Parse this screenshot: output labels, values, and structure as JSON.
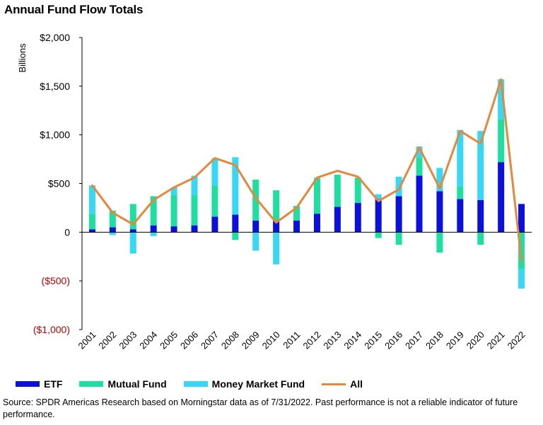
{
  "title": "Annual Fund Flow Totals",
  "source": "Source: SPDR Americas Research based on Morningstar data as of 7/31/2022.  Past performance is not a reliable indicator of future performance.",
  "colors": {
    "etf": "#0a10e0",
    "mutual_fund": "#1de0a0",
    "money_market_fund": "#35d8f5",
    "all": "#e8873a",
    "negative_tick": "#c00000"
  },
  "chart_data": {
    "type": "bar",
    "stacked": true,
    "title": "Annual Fund Flow Totals",
    "ylabel": "Billions",
    "ylim": [
      -1000,
      2000
    ],
    "yticks": [
      {
        "value": 2000,
        "label": "$2,000"
      },
      {
        "value": 1500,
        "label": "$1,500"
      },
      {
        "value": 1000,
        "label": "$1,000"
      },
      {
        "value": 500,
        "label": "$500"
      },
      {
        "value": 0,
        "label": "0"
      },
      {
        "value": -500,
        "label": "($500)"
      },
      {
        "value": -1000,
        "label": "($1,000)"
      }
    ],
    "categories": [
      "2001",
      "2002",
      "2003",
      "2004",
      "2005",
      "2006",
      "2007",
      "2008",
      "2009",
      "2010",
      "2011",
      "2012",
      "2013",
      "2014",
      "2015",
      "2016",
      "2017",
      "2018",
      "2019",
      "2020",
      "2021",
      "2022"
    ],
    "series": [
      {
        "name": "ETF",
        "key": "etf",
        "values": [
          30,
          50,
          30,
          70,
          60,
          70,
          160,
          180,
          120,
          120,
          120,
          190,
          260,
          300,
          340,
          370,
          580,
          420,
          340,
          330,
          720,
          290
        ]
      },
      {
        "name": "Mutual Fund",
        "key": "mutual_fund",
        "values": [
          160,
          170,
          260,
          300,
          320,
          310,
          320,
          -80,
          420,
          310,
          150,
          360,
          330,
          260,
          -60,
          -130,
          190,
          -210,
          130,
          -130,
          440,
          -380
        ]
      },
      {
        "name": "Money Market Fund",
        "key": "money_market_fund",
        "values": [
          290,
          -30,
          -220,
          -40,
          80,
          200,
          280,
          590,
          -190,
          -330,
          -10,
          10,
          0,
          0,
          50,
          200,
          110,
          240,
          580,
          710,
          410,
          -200
        ]
      }
    ],
    "line": {
      "name": "All",
      "key": "all",
      "values": [
        480,
        200,
        80,
        330,
        460,
        560,
        760,
        690,
        350,
        100,
        250,
        560,
        630,
        570,
        320,
        440,
        870,
        450,
        1040,
        910,
        1570,
        -290
      ]
    },
    "legend": [
      "ETF",
      "Mutual Fund",
      "Money Market Fund",
      "All"
    ],
    "legend_position": "bottom"
  }
}
